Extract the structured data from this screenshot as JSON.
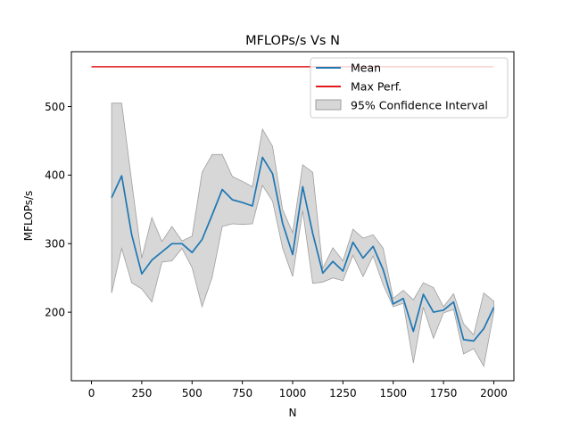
{
  "chart_data": {
    "type": "line",
    "title": "MFLOPs/s Vs N",
    "xlabel": "N",
    "ylabel": "MFLOPs/s",
    "xlim": [
      -100,
      2100
    ],
    "ylim": [
      100,
      580
    ],
    "x_ticks": [
      0,
      250,
      500,
      750,
      1000,
      1250,
      1500,
      1750,
      2000
    ],
    "y_ticks": [
      200,
      300,
      400,
      500
    ],
    "grid": false,
    "legend_position": "top-right",
    "legend": [
      "Mean",
      "Max Perf.",
      "95% Confidence Interval"
    ],
    "colors": {
      "mean": "#1f77b4",
      "max": "#e31a1c",
      "ci": "#bdbdbd"
    },
    "x": [
      100,
      150,
      200,
      250,
      300,
      350,
      400,
      450,
      500,
      550,
      600,
      650,
      700,
      750,
      800,
      850,
      900,
      950,
      1000,
      1050,
      1100,
      1150,
      1200,
      1250,
      1300,
      1350,
      1400,
      1450,
      1500,
      1550,
      1600,
      1650,
      1700,
      1750,
      1800,
      1850,
      1900,
      1950,
      2000
    ],
    "series": [
      {
        "name": "Mean",
        "values": [
          367,
          399,
          313,
          256,
          276,
          288,
          300,
          300,
          287,
          306,
          342,
          379,
          364,
          360,
          355,
          426,
          402,
          330,
          284,
          383,
          315,
          257,
          274,
          260,
          302,
          279,
          296,
          262,
          212,
          220,
          172,
          226,
          200,
          203,
          215,
          160,
          158,
          176,
          207
        ]
      },
      {
        "name": "Max Perf.",
        "x": [
          0,
          2000
        ],
        "values": [
          558,
          558
        ]
      },
      {
        "name": "95% Confidence Interval",
        "lower": [
          228,
          293,
          243,
          234,
          215,
          273,
          275,
          293,
          265,
          208,
          251,
          325,
          329,
          328,
          329,
          385,
          362,
          294,
          252,
          348,
          242,
          244,
          250,
          246,
          283,
          252,
          282,
          240,
          208,
          213,
          126,
          207,
          162,
          199,
          204,
          139,
          147,
          121,
          200
        ],
        "upper": [
          505,
          505,
          390,
          279,
          338,
          303,
          325,
          304,
          311,
          404,
          430,
          430,
          398,
          391,
          383,
          467,
          442,
          350,
          316,
          415,
          404,
          264,
          294,
          275,
          321,
          308,
          313,
          293,
          220,
          232,
          218,
          243,
          236,
          208,
          227,
          183,
          167,
          228,
          216
        ]
      }
    ]
  }
}
